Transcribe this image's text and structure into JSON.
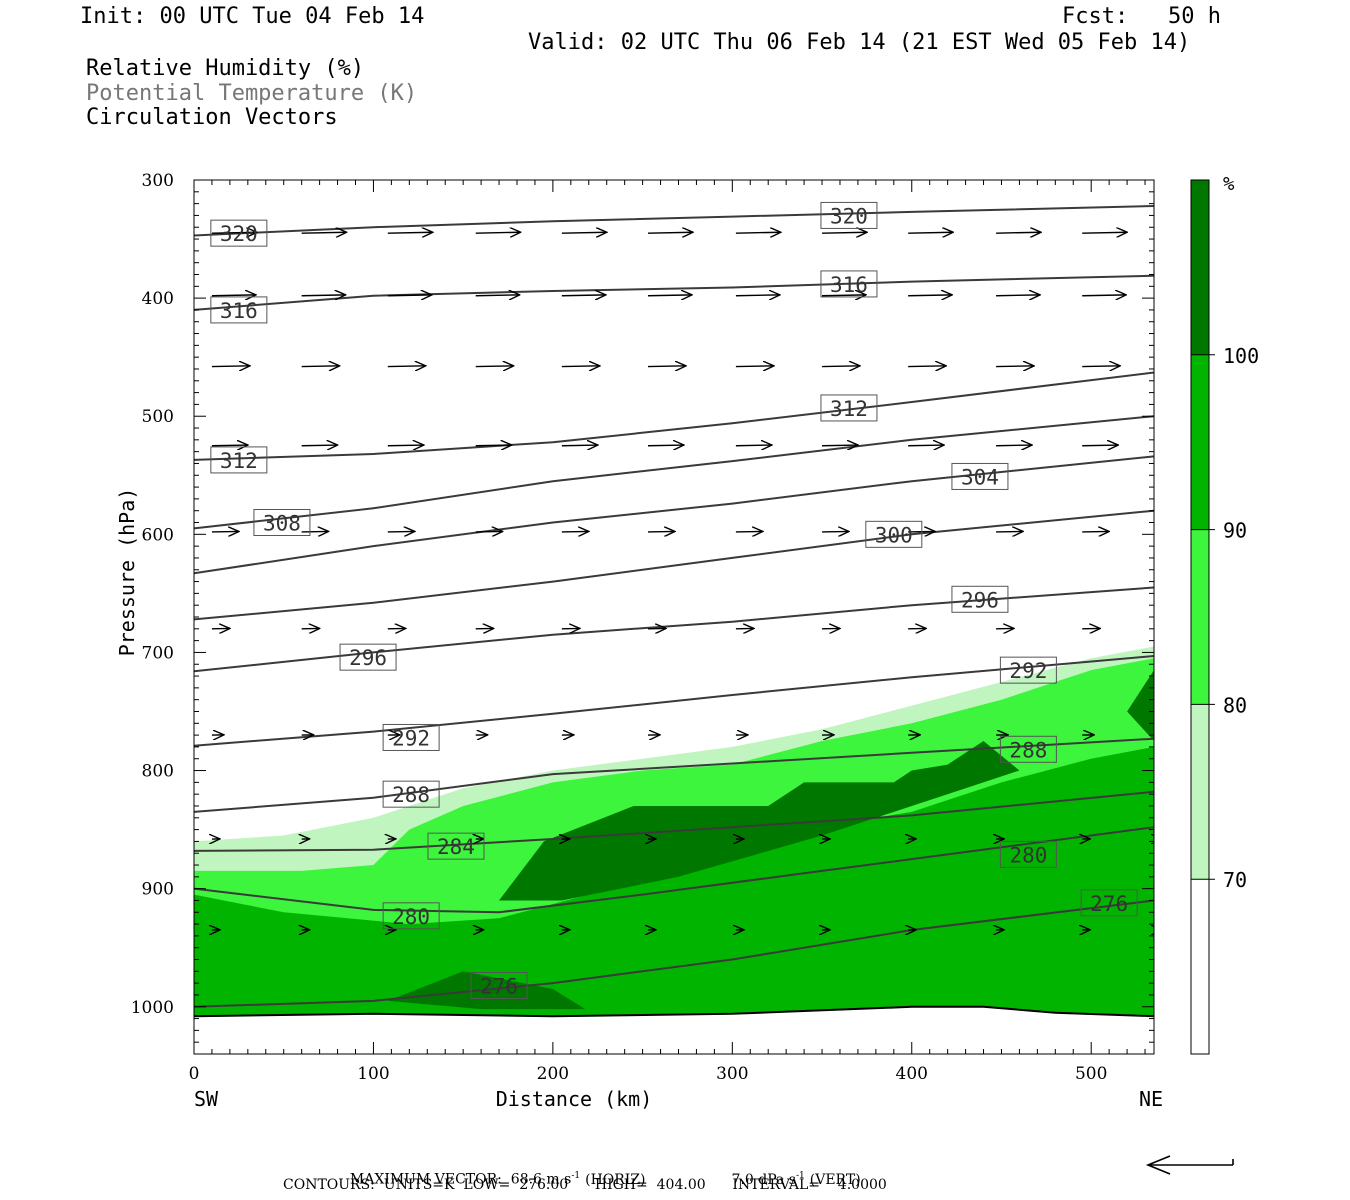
{
  "header": {
    "init": "Init: 00 UTC Tue 04 Feb 14",
    "fcst": "Fcst:   50 h",
    "valid": "Valid: 02 UTC Thu 06 Feb 14 (21 EST Wed 05 Feb 14)",
    "fields": [
      {
        "label": "Relative Humidity (%)",
        "color": "#000000"
      },
      {
        "label": "Potential Temperature (K)",
        "color": "#777777"
      },
      {
        "label": "Circulation Vectors",
        "color": "#000000"
      }
    ]
  },
  "footer": {
    "line1": "MAXIMUM VECTOR:  68.6 m s",
    "line1_horiz": "(HORIZ)",
    "line1_vert": "7.0 dPa s",
    "line1_vert2": "(VERT)",
    "exponent": "-1",
    "line2": "CONTOURS:  UNITS=K  LOW=  276.00      HIGH=  404.00      INTERVAL=    4.0000"
  },
  "chart_data": {
    "type": "cross-section",
    "xlabel": "Distance (km)",
    "ylabel": "Pressure (hPa)",
    "xlim": [
      0,
      535
    ],
    "ylim": [
      1040,
      300
    ],
    "xticks": [
      0,
      100,
      200,
      300,
      400,
      500
    ],
    "yticks": [
      300,
      400,
      500,
      600,
      700,
      800,
      900,
      1000
    ],
    "x_endpoints": {
      "left": "SW",
      "right": "NE"
    },
    "colorbar": {
      "unit": "%",
      "levels": [
        70,
        80,
        90,
        100
      ],
      "colors": [
        "#ffffff",
        "#c0f5c0",
        "#3cf53c",
        "#00b400",
        "#007800"
      ]
    },
    "rh_fill": [
      {
        "level": 70,
        "color": "#c0f5c0",
        "boundary": [
          [
            0,
            860
          ],
          [
            50,
            855
          ],
          [
            100,
            840
          ],
          [
            150,
            815
          ],
          [
            200,
            800
          ],
          [
            250,
            790
          ],
          [
            300,
            780
          ],
          [
            350,
            765
          ],
          [
            400,
            745
          ],
          [
            450,
            725
          ],
          [
            500,
            705
          ],
          [
            535,
            695
          ]
        ]
      },
      {
        "level": 80,
        "color": "#3cf53c",
        "boundary": [
          [
            0,
            885
          ],
          [
            60,
            885
          ],
          [
            100,
            880
          ],
          [
            120,
            850
          ],
          [
            150,
            830
          ],
          [
            200,
            810
          ],
          [
            250,
            800
          ],
          [
            300,
            795
          ],
          [
            350,
            775
          ],
          [
            400,
            760
          ],
          [
            450,
            740
          ],
          [
            500,
            715
          ],
          [
            535,
            705
          ]
        ]
      },
      {
        "level": 90,
        "color": "#00b400",
        "boundary": [
          [
            0,
            905
          ],
          [
            50,
            920
          ],
          [
            120,
            930
          ],
          [
            170,
            925
          ],
          [
            220,
            905
          ],
          [
            300,
            860
          ],
          [
            400,
            835
          ],
          [
            450,
            810
          ],
          [
            500,
            790
          ],
          [
            535,
            780
          ]
        ]
      },
      {
        "level": 100,
        "color": "#007800",
        "regions": [
          [
            [
              170,
              910
            ],
            [
              195,
              860
            ],
            [
              245,
              830
            ],
            [
              320,
              830
            ],
            [
              340,
              810
            ],
            [
              390,
              810
            ],
            [
              400,
              800
            ],
            [
              420,
              795
            ],
            [
              440,
              775
            ],
            [
              460,
              800
            ],
            [
              430,
              815
            ],
            [
              350,
              855
            ],
            [
              270,
              890
            ],
            [
              205,
              910
            ]
          ],
          [
            [
              108,
              995
            ],
            [
              150,
              970
            ],
            [
              200,
              985
            ],
            [
              218,
              1002
            ],
            [
              160,
              1002
            ]
          ],
          [
            [
              520,
              750
            ],
            [
              535,
              715
            ],
            [
              535,
              775
            ]
          ]
        ]
      }
    ],
    "theta_contours": [
      {
        "value": 320,
        "points": [
          [
            0,
            347
          ],
          [
            100,
            340
          ],
          [
            200,
            335
          ],
          [
            300,
            331
          ],
          [
            400,
            327
          ],
          [
            535,
            322
          ]
        ]
      },
      {
        "value": 316,
        "points": [
          [
            0,
            410
          ],
          [
            100,
            398
          ],
          [
            200,
            394
          ],
          [
            300,
            391
          ],
          [
            400,
            386
          ],
          [
            535,
            381
          ]
        ]
      },
      {
        "value": 312,
        "points": [
          [
            0,
            537
          ],
          [
            100,
            532
          ],
          [
            200,
            522
          ],
          [
            300,
            506
          ],
          [
            400,
            488
          ],
          [
            535,
            463
          ]
        ]
      },
      {
        "value": 308,
        "points": [
          [
            0,
            595
          ],
          [
            100,
            578
          ],
          [
            200,
            555
          ],
          [
            300,
            538
          ],
          [
            400,
            520
          ],
          [
            535,
            500
          ]
        ]
      },
      {
        "value": 304,
        "points": [
          [
            0,
            633
          ],
          [
            100,
            610
          ],
          [
            200,
            590
          ],
          [
            300,
            574
          ],
          [
            400,
            555
          ],
          [
            535,
            534
          ]
        ]
      },
      {
        "value": 300,
        "points": [
          [
            0,
            672
          ],
          [
            100,
            658
          ],
          [
            200,
            640
          ],
          [
            300,
            620
          ],
          [
            400,
            600
          ],
          [
            535,
            580
          ]
        ]
      },
      {
        "value": 296,
        "points": [
          [
            0,
            716
          ],
          [
            100,
            700
          ],
          [
            200,
            685
          ],
          [
            300,
            674
          ],
          [
            400,
            660
          ],
          [
            535,
            645
          ]
        ]
      },
      {
        "value": 292,
        "points": [
          [
            0,
            779
          ],
          [
            100,
            767
          ],
          [
            200,
            752
          ],
          [
            300,
            736
          ],
          [
            400,
            721
          ],
          [
            535,
            703
          ]
        ]
      },
      {
        "value": 288,
        "points": [
          [
            0,
            835
          ],
          [
            100,
            823
          ],
          [
            200,
            803
          ],
          [
            300,
            794
          ],
          [
            400,
            785
          ],
          [
            535,
            773
          ]
        ]
      },
      {
        "value": 284,
        "points": [
          [
            0,
            868
          ],
          [
            100,
            867
          ],
          [
            200,
            858
          ],
          [
            300,
            848
          ],
          [
            400,
            838
          ],
          [
            535,
            818
          ]
        ]
      },
      {
        "value": 280,
        "points": [
          [
            0,
            900
          ],
          [
            100,
            918
          ],
          [
            170,
            920
          ],
          [
            250,
            905
          ],
          [
            350,
            885
          ],
          [
            450,
            865
          ],
          [
            535,
            848
          ]
        ]
      },
      {
        "value": 276,
        "points": [
          [
            0,
            1000
          ],
          [
            100,
            995
          ],
          [
            200,
            980
          ],
          [
            300,
            960
          ],
          [
            400,
            935
          ],
          [
            535,
            910
          ]
        ]
      }
    ],
    "theta_labels": [
      {
        "text": "320",
        "x": 25,
        "p": 345
      },
      {
        "text": "320",
        "x": 365,
        "p": 330
      },
      {
        "text": "316",
        "x": 25,
        "p": 410
      },
      {
        "text": "316",
        "x": 365,
        "p": 388
      },
      {
        "text": "312",
        "x": 25,
        "p": 537
      },
      {
        "text": "312",
        "x": 365,
        "p": 493
      },
      {
        "text": "308",
        "x": 49,
        "p": 590
      },
      {
        "text": "304",
        "x": 438,
        "p": 551
      },
      {
        "text": "300",
        "x": 390,
        "p": 600
      },
      {
        "text": "296",
        "x": 438,
        "p": 655
      },
      {
        "text": "296",
        "x": 97,
        "p": 704
      },
      {
        "text": "292",
        "x": 465,
        "p": 715
      },
      {
        "text": "292",
        "x": 121,
        "p": 772
      },
      {
        "text": "288",
        "x": 465,
        "p": 782
      },
      {
        "text": "288",
        "x": 121,
        "p": 820
      },
      {
        "text": "284",
        "x": 146,
        "p": 864
      },
      {
        "text": "280",
        "x": 465,
        "p": 871
      },
      {
        "text": "280",
        "x": 121,
        "p": 923
      },
      {
        "text": "276",
        "x": 510,
        "p": 912
      },
      {
        "text": "276",
        "x": 170,
        "p": 982
      }
    ],
    "surface": [
      [
        0,
        1008
      ],
      [
        100,
        1006
      ],
      [
        200,
        1008
      ],
      [
        300,
        1006
      ],
      [
        400,
        1000
      ],
      [
        440,
        1000
      ],
      [
        480,
        1005
      ],
      [
        535,
        1008
      ]
    ],
    "vector_rows": [
      {
        "p": 345,
        "len": 45
      },
      {
        "p": 398,
        "len": 44
      },
      {
        "p": 458,
        "len": 38
      },
      {
        "p": 525,
        "len": 36
      },
      {
        "p": 598,
        "len": 27
      },
      {
        "p": 680,
        "len": 18
      },
      {
        "p": 770,
        "len": 12
      },
      {
        "p": 858,
        "len": 8
      },
      {
        "p": 935,
        "len": 8
      }
    ],
    "vector_x": [
      10,
      60,
      108,
      157,
      205,
      253,
      302,
      350,
      398,
      447,
      495,
      535
    ],
    "scale_arrow": "reference vector"
  }
}
